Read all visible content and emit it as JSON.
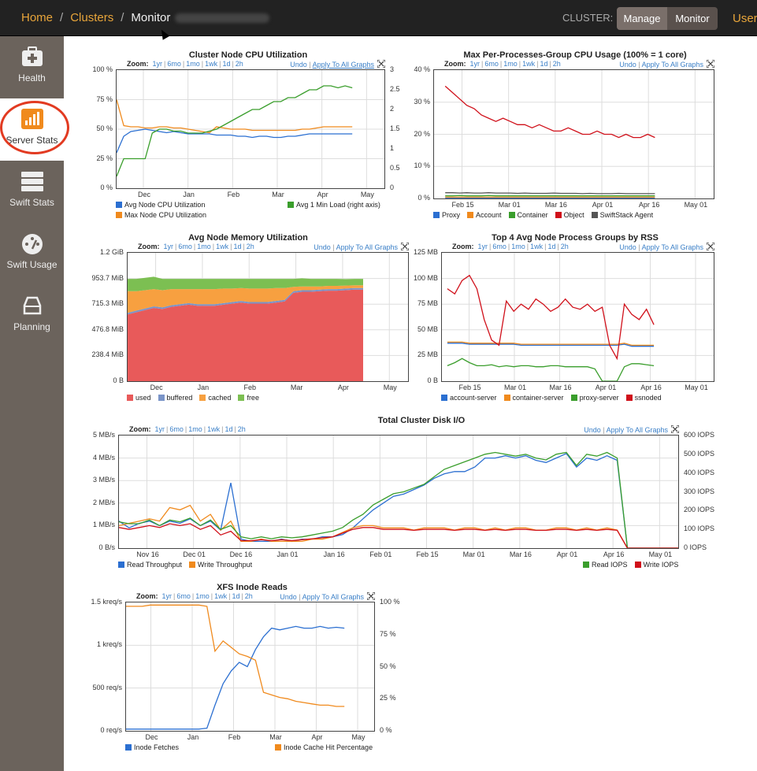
{
  "breadcrumb": {
    "home": "Home",
    "clusters": "Clusters",
    "monitor": "Monitor"
  },
  "header": {
    "cluster_label": "CLUSTER:",
    "manage": "Manage",
    "monitor": "Monitor",
    "user": "User"
  },
  "nav": [
    {
      "label": "Health",
      "icon": "medkit-icon"
    },
    {
      "label": "Server Stats",
      "icon": "bar-chart-icon"
    },
    {
      "label": "Swift Stats",
      "icon": "server-icon"
    },
    {
      "label": "Swift Usage",
      "icon": "gauge-icon"
    },
    {
      "label": "Planning",
      "icon": "hard-drive-icon"
    }
  ],
  "zoom": {
    "label": "Zoom:",
    "items": [
      "1yr",
      "6mo",
      "1mo",
      "1wk",
      "1d",
      "2h"
    ],
    "undo": "Undo",
    "apply": "Apply To All Graphs"
  },
  "colors": {
    "blue": "#2b6fd1",
    "orange": "#f08a1d",
    "green": "#3a9e2c",
    "red": "#d0101a",
    "gray": "#555555",
    "lightblue": "#6f8fd0"
  },
  "chart_data": [
    {
      "id": "cpu",
      "type": "line",
      "title": "Cluster Node CPU Utilization",
      "yticks": [
        "100 %",
        "75 %",
        "50 %",
        "25 %",
        "0 %"
      ],
      "y2ticks": [
        "3",
        "2.5",
        "2",
        "1.5",
        "1",
        "0.5",
        "0"
      ],
      "xticks": [
        "Dec",
        "Jan",
        "Feb",
        "Mar",
        "Apr",
        "May"
      ],
      "ylim": [
        0,
        100
      ],
      "y2lim": [
        0,
        3
      ],
      "series": [
        {
          "name": "Avg Node CPU Utilization",
          "color": "#2b6fd1",
          "axis": "left",
          "values": [
            30,
            44,
            48,
            49,
            50,
            49,
            48,
            47,
            48,
            47,
            46,
            46,
            46,
            46,
            45,
            45,
            45,
            44,
            44,
            43,
            44,
            44,
            43,
            43,
            44,
            44,
            45,
            46,
            46,
            46,
            46,
            46,
            46,
            46
          ]
        },
        {
          "name": "Max Node CPU Utilization",
          "color": "#f08a1d",
          "axis": "left",
          "values": [
            75,
            53,
            52,
            52,
            51,
            51,
            52,
            52,
            51,
            51,
            50,
            49,
            48,
            47,
            52,
            51,
            50,
            50,
            50,
            49,
            49,
            49,
            49,
            49,
            49,
            49,
            50,
            50,
            51,
            52,
            52,
            52,
            52,
            52
          ]
        },
        {
          "name": "Avg 1 Min Load (right axis)",
          "color": "#3a9e2c",
          "axis": "right",
          "values": [
            0.3,
            0.75,
            0.75,
            0.75,
            0.75,
            1.4,
            1.5,
            1.5,
            1.45,
            1.45,
            1.4,
            1.4,
            1.4,
            1.45,
            1.5,
            1.6,
            1.7,
            1.8,
            1.9,
            2.0,
            2.0,
            2.1,
            2.2,
            2.2,
            2.3,
            2.3,
            2.4,
            2.5,
            2.5,
            2.6,
            2.6,
            2.55,
            2.6,
            2.55
          ]
        }
      ]
    },
    {
      "id": "maxcpu",
      "type": "line",
      "title": "Max Per-Processes-Group CPU Usage (100% = 1 core)",
      "yticks": [
        "40 %",
        "30 %",
        "20 %",
        "10 %",
        "0 %"
      ],
      "xticks": [
        "Feb 15",
        "Mar 01",
        "Mar 16",
        "Apr 01",
        "Apr 16",
        "May 01"
      ],
      "ylim": [
        0,
        40
      ],
      "series": [
        {
          "name": "Proxy",
          "color": "#2b6fd1",
          "values": [
            0.2,
            0.2,
            0.2,
            0.2,
            0.2,
            0.2,
            0.2,
            0.2,
            0.2,
            0.2,
            0.2,
            0.2,
            0.2,
            0.2,
            0.2,
            0.2,
            0.2,
            0.2,
            0.2,
            0.2,
            0.2,
            0.2,
            0.2,
            0.2,
            0.2,
            0.2,
            0.2,
            0.2,
            0.2,
            0.2
          ]
        },
        {
          "name": "Account",
          "color": "#f08a1d",
          "values": [
            0.4,
            0.4,
            0.4,
            0.4,
            0.4,
            0.4,
            0.4,
            0.4,
            0.4,
            0.4,
            0.4,
            0.4,
            0.4,
            0.4,
            0.4,
            0.4,
            0.4,
            0.4,
            0.4,
            0.4,
            0.4,
            0.4,
            0.4,
            0.4,
            0.4,
            0.4,
            0.4,
            0.4,
            0.4,
            0.4
          ]
        },
        {
          "name": "Container",
          "color": "#3a9e2c",
          "values": [
            0.8,
            0.8,
            0.9,
            0.8,
            0.8,
            0.8,
            0.9,
            0.8,
            0.8,
            0.8,
            0.8,
            0.8,
            0.8,
            0.8,
            0.8,
            0.8,
            0.8,
            0.8,
            0.8,
            0.8,
            0.8,
            0.8,
            0.8,
            0.8,
            0.8,
            0.8,
            0.8,
            0.8,
            0.8,
            0.8
          ]
        },
        {
          "name": "Object",
          "color": "#d0101a",
          "values": [
            35,
            33,
            31,
            29,
            28,
            26,
            25,
            24,
            25,
            24,
            23,
            23,
            22,
            23,
            22,
            21,
            21,
            22,
            21,
            20,
            20,
            21,
            20,
            20,
            19,
            20,
            19,
            19,
            20,
            19
          ]
        },
        {
          "name": "SwiftStack Agent",
          "color": "#555555",
          "values": [
            1.8,
            1.8,
            1.7,
            1.8,
            1.7,
            1.7,
            1.8,
            1.7,
            1.7,
            1.7,
            1.6,
            1.7,
            1.6,
            1.6,
            1.6,
            1.7,
            1.6,
            1.6,
            1.6,
            1.5,
            1.6,
            1.5,
            1.5,
            1.5,
            1.6,
            1.5,
            1.5,
            1.5,
            1.5,
            1.5
          ]
        }
      ]
    },
    {
      "id": "mem",
      "type": "area",
      "title": "Avg Node Memory Utilization",
      "yticks": [
        "1.2 GiB",
        "953.7 MiB",
        "715.3 MiB",
        "476.8 MiB",
        "238.4 MiB",
        "0 B"
      ],
      "xticks": [
        "Dec",
        "Jan",
        "Feb",
        "Mar",
        "Apr",
        "May"
      ],
      "ylim": [
        0,
        1192
      ],
      "series": [
        {
          "name": "used",
          "color": "#e85a5a",
          "values": [
            620,
            640,
            660,
            680,
            670,
            690,
            700,
            710,
            700,
            700,
            700,
            710,
            720,
            730,
            720,
            720,
            720,
            730,
            740,
            820,
            830,
            830,
            835,
            840,
            840,
            845,
            850,
            850
          ]
        },
        {
          "name": "buffered",
          "color": "#7a94c8",
          "values": [
            15,
            15,
            15,
            15,
            15,
            15,
            15,
            15,
            15,
            15,
            15,
            15,
            15,
            15,
            15,
            15,
            15,
            15,
            15,
            15,
            15,
            15,
            15,
            15,
            15,
            15,
            15,
            15
          ]
        },
        {
          "name": "cached",
          "color": "#f7a040",
          "values": [
            200,
            180,
            170,
            160,
            160,
            150,
            140,
            130,
            140,
            140,
            140,
            135,
            125,
            120,
            125,
            125,
            125,
            120,
            110,
            40,
            35,
            35,
            30,
            30,
            30,
            28,
            25,
            25
          ]
        },
        {
          "name": "free",
          "color": "#7cbf52",
          "values": [
            115,
            115,
            115,
            115,
            105,
            95,
            95,
            95,
            95,
            95,
            95,
            90,
            90,
            85,
            90,
            90,
            90,
            85,
            85,
            75,
            75,
            70,
            70,
            65,
            65,
            60,
            60,
            60
          ]
        }
      ]
    },
    {
      "id": "rss",
      "type": "line",
      "title": "Top 4 Avg Node Process Groups by RSS",
      "yticks": [
        "125 MB",
        "100 MB",
        "75 MB",
        "50 MB",
        "25 MB",
        "0 B"
      ],
      "xticks": [
        "Feb 15",
        "Mar 01",
        "Mar 16",
        "Apr 01",
        "Apr 16",
        "May 01"
      ],
      "ylim": [
        0,
        125
      ],
      "series": [
        {
          "name": "account-server",
          "color": "#2b6fd1",
          "values": [
            37,
            37,
            37,
            36,
            36,
            36,
            36,
            36,
            36,
            36,
            35,
            35,
            35,
            35,
            35,
            35,
            35,
            35,
            35,
            35,
            35,
            35,
            35,
            35,
            36,
            34,
            34,
            34,
            34
          ]
        },
        {
          "name": "container-server",
          "color": "#f08a1d",
          "values": [
            38,
            38,
            38,
            37,
            37,
            37,
            37,
            37,
            37,
            37,
            36,
            36,
            36,
            36,
            36,
            36,
            36,
            36,
            36,
            36,
            36,
            36,
            36,
            36,
            37,
            35,
            35,
            35,
            35
          ]
        },
        {
          "name": "proxy-server",
          "color": "#3a9e2c",
          "values": [
            15,
            18,
            22,
            18,
            15,
            15,
            16,
            14,
            15,
            14,
            15,
            15,
            14,
            14,
            15,
            15,
            14,
            14,
            14,
            14,
            12,
            0,
            0,
            0,
            14,
            17,
            17,
            16,
            15
          ]
        },
        {
          "name": "ssnoded",
          "color": "#d0101a",
          "values": [
            90,
            85,
            98,
            103,
            90,
            60,
            40,
            35,
            78,
            68,
            75,
            70,
            80,
            75,
            68,
            72,
            80,
            72,
            70,
            75,
            68,
            72,
            35,
            22,
            75,
            65,
            60,
            70,
            55
          ]
        }
      ]
    },
    {
      "id": "disk",
      "type": "line",
      "title": "Total Cluster Disk I/O",
      "yticks": [
        "5 MB/s",
        "4 MB/s",
        "3 MB/s",
        "2 MB/s",
        "1 MB/s",
        "0 B/s"
      ],
      "y2ticks": [
        "600 IOPS",
        "500 IOPS",
        "400 IOPS",
        "300 IOPS",
        "200 IOPS",
        "100 IOPS",
        "0 IOPS"
      ],
      "xticks": [
        "Nov 16",
        "Dec 01",
        "Dec 16",
        "Jan 01",
        "Jan 16",
        "Feb 01",
        "Feb 15",
        "Mar 01",
        "Mar 16",
        "Apr 01",
        "Apr 16",
        "May 01"
      ],
      "ylim": [
        0,
        5
      ],
      "y2lim": [
        0,
        600
      ],
      "series": [
        {
          "name": "Read Throughput",
          "color": "#2b6fd1",
          "axis": "left",
          "values": [
            1.2,
            0.9,
            1.1,
            1.2,
            1.0,
            1.2,
            1.1,
            1.3,
            1.0,
            1.2,
            0.8,
            2.9,
            0.4,
            0.3,
            0.3,
            0.3,
            0.4,
            0.3,
            0.4,
            0.4,
            0.5,
            0.5,
            0.6,
            0.9,
            1.3,
            1.7,
            2.0,
            2.3,
            2.4,
            2.6,
            2.8,
            3.1,
            3.3,
            3.4,
            3.4,
            3.6,
            4.0,
            4.0,
            4.1,
            4.0,
            4.1,
            3.9,
            3.8,
            4.0,
            4.2,
            3.6,
            4.0,
            3.9,
            4.1,
            3.9,
            0.0,
            0.0,
            0.0,
            0.0,
            0.0,
            0.0
          ]
        },
        {
          "name": "Write Throughput",
          "color": "#f08a1d",
          "axis": "left",
          "values": [
            1.0,
            1.1,
            1.2,
            1.3,
            1.2,
            1.8,
            1.7,
            1.9,
            1.2,
            1.5,
            0.8,
            1.2,
            0.3,
            0.3,
            0.4,
            0.3,
            0.3,
            0.3,
            0.3,
            0.4,
            0.4,
            0.5,
            0.7,
            0.9,
            1.0,
            1.0,
            0.9,
            0.9,
            0.9,
            0.8,
            0.9,
            0.9,
            0.9,
            0.8,
            0.9,
            0.9,
            0.8,
            0.9,
            0.8,
            0.9,
            0.9,
            0.8,
            0.8,
            0.9,
            0.9,
            0.8,
            0.9,
            0.8,
            0.9,
            0.8,
            0.0,
            0.0,
            0.0,
            0.0,
            0.0,
            0.0
          ]
        },
        {
          "name": "Read IOPS",
          "color": "#3a9e2c",
          "axis": "right",
          "values": [
            140,
            130,
            130,
            150,
            120,
            150,
            140,
            160,
            120,
            150,
            100,
            120,
            60,
            50,
            60,
            50,
            60,
            55,
            60,
            70,
            80,
            90,
            110,
            150,
            180,
            230,
            260,
            290,
            300,
            320,
            340,
            380,
            420,
            440,
            460,
            480,
            500,
            510,
            500,
            490,
            500,
            480,
            470,
            500,
            510,
            440,
            500,
            490,
            510,
            480,
            0,
            0,
            0,
            0,
            0,
            0
          ]
        },
        {
          "name": "Write IOPS",
          "color": "#d0101a",
          "axis": "right",
          "values": [
            110,
            100,
            110,
            120,
            110,
            130,
            120,
            130,
            100,
            120,
            70,
            90,
            40,
            40,
            45,
            40,
            45,
            40,
            45,
            50,
            55,
            60,
            80,
            100,
            110,
            110,
            100,
            100,
            100,
            95,
            100,
            100,
            100,
            95,
            100,
            100,
            95,
            100,
            95,
            100,
            100,
            95,
            95,
            100,
            100,
            95,
            100,
            95,
            100,
            95,
            0,
            0,
            0,
            0,
            0,
            0
          ]
        }
      ]
    },
    {
      "id": "xfs",
      "type": "line",
      "title": "XFS Inode Reads",
      "yticks": [
        "1.5 kreq/s",
        "1 kreq/s",
        "500 req/s",
        "0 req/s"
      ],
      "y2ticks": [
        "100 %",
        "75 %",
        "50 %",
        "25 %",
        "0 %"
      ],
      "xticks": [
        "Dec",
        "Jan",
        "Feb",
        "Mar",
        "Apr",
        "May"
      ],
      "ylim": [
        0,
        1.5
      ],
      "y2lim": [
        0,
        100
      ],
      "series": [
        {
          "name": "Inode Fetches",
          "color": "#2b6fd1",
          "axis": "left",
          "values": [
            0.02,
            0.02,
            0.02,
            0.02,
            0.02,
            0.02,
            0.02,
            0.02,
            0.02,
            0.02,
            0.03,
            0.3,
            0.55,
            0.7,
            0.8,
            0.75,
            0.95,
            1.1,
            1.2,
            1.18,
            1.2,
            1.22,
            1.2,
            1.2,
            1.22,
            1.2,
            1.21,
            1.2
          ]
        },
        {
          "name": "Inode Cache Hit Percentage",
          "color": "#f08a1d",
          "axis": "right",
          "values": [
            97,
            97,
            97,
            98,
            98,
            98,
            98,
            98,
            98,
            98,
            97,
            62,
            70,
            65,
            60,
            58,
            55,
            30,
            28,
            26,
            25,
            23,
            22,
            21,
            20,
            20,
            19,
            19
          ]
        }
      ]
    }
  ]
}
